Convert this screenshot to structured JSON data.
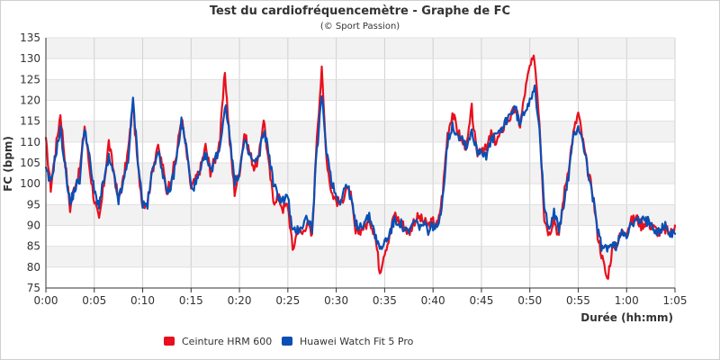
{
  "chart_data": {
    "type": "line",
    "title": "Test du cardiofréquencemètre - Graphe de FC",
    "subtitle": "(© Sport Passion)",
    "xlabel": "Durée (hh:mm)",
    "ylabel": "FC (bpm)",
    "ylim": [
      75,
      135
    ],
    "yticks": [
      75,
      80,
      85,
      90,
      95,
      100,
      105,
      110,
      115,
      120,
      125,
      130,
      135
    ],
    "xlim_minutes": [
      0,
      65
    ],
    "xticks_minutes": [
      0,
      5,
      10,
      15,
      20,
      25,
      30,
      35,
      40,
      45,
      50,
      55,
      60,
      65
    ],
    "xtick_labels": [
      "0:00",
      "0:05",
      "0:10",
      "0:15",
      "0:20",
      "0:25",
      "0:30",
      "0:35",
      "0:40",
      "0:45",
      "0:50",
      "0:55",
      "1:00",
      "1:05"
    ],
    "grid": true,
    "legend_position": "bottom",
    "series": [
      {
        "name": "Ceinture HRM 600",
        "color": "#e8101e",
        "x_minutes": [
          0,
          0.5,
          1,
          1.5,
          2,
          2.5,
          3,
          3.5,
          4,
          4.5,
          5,
          5.5,
          6,
          6.5,
          7,
          7.5,
          8,
          8.5,
          9,
          9.5,
          10,
          10.5,
          11,
          11.5,
          12,
          12.5,
          13,
          13.5,
          14,
          14.5,
          15,
          15.5,
          16,
          16.5,
          17,
          17.5,
          18,
          18.5,
          19,
          19.5,
          20,
          20.5,
          21,
          21.5,
          22,
          22.5,
          23,
          23.5,
          24,
          24.5,
          25,
          25.5,
          26,
          26.5,
          27,
          27.5,
          28,
          28.5,
          29,
          29.5,
          30,
          30.5,
          31,
          31.5,
          32,
          32.5,
          33,
          33.5,
          34,
          34.5,
          35,
          35.5,
          36,
          36.5,
          37,
          37.5,
          38,
          38.5,
          39,
          39.5,
          40,
          40.5,
          41,
          41.5,
          42,
          42.5,
          43,
          43.5,
          44,
          44.5,
          45,
          45.5,
          46,
          46.5,
          47,
          47.5,
          48,
          48.5,
          49,
          49.5,
          50,
          50.5,
          51,
          51.5,
          52,
          52.5,
          53,
          53.5,
          54,
          54.5,
          55,
          55.5,
          56,
          56.5,
          57,
          57.5,
          58,
          58.5,
          59,
          59.5,
          60,
          60.5,
          61,
          61.5,
          62,
          62.5,
          63,
          63.5,
          64,
          64.5,
          65
        ],
        "values": [
          110,
          99,
          108,
          117,
          105,
          94,
          100,
          103,
          114,
          104,
          96,
          91,
          100,
          110,
          103,
          96,
          101,
          108,
          119,
          104,
          95,
          96,
          103,
          109,
          105,
          98,
          102,
          107,
          116,
          108,
          99,
          101,
          104,
          109,
          103,
          106,
          111,
          127,
          110,
          98,
          103,
          112,
          108,
          104,
          106,
          116,
          105,
          96,
          97,
          94,
          95,
          84,
          89,
          88,
          91,
          87,
          112,
          127,
          106,
          98,
          96,
          95,
          99,
          97,
          88,
          89,
          90,
          91,
          88,
          79,
          84,
          87,
          93,
          91,
          90,
          88,
          91,
          92,
          91,
          90,
          91,
          90,
          98,
          112,
          117,
          113,
          110,
          109,
          118,
          107,
          109,
          108,
          112,
          110,
          112,
          115,
          116,
          118,
          114,
          122,
          128,
          130,
          115,
          92,
          88,
          92,
          87,
          97,
          104,
          112,
          117,
          110,
          103,
          98,
          88,
          82,
          77,
          84,
          86,
          88,
          89,
          91,
          92,
          90,
          91,
          90,
          89,
          88,
          89,
          88,
          90
        ]
      },
      {
        "name": "Huawei Watch Fit 5 Pro",
        "color": "#0a4fb4",
        "x_minutes": [
          0,
          0.5,
          1,
          1.5,
          2,
          2.5,
          3,
          3.5,
          4,
          4.5,
          5,
          5.5,
          6,
          6.5,
          7,
          7.5,
          8,
          8.5,
          9,
          9.5,
          10,
          10.5,
          11,
          11.5,
          12,
          12.5,
          13,
          13.5,
          14,
          14.5,
          15,
          15.5,
          16,
          16.5,
          17,
          17.5,
          18,
          18.5,
          19,
          19.5,
          20,
          20.5,
          21,
          21.5,
          22,
          22.5,
          23,
          23.5,
          24,
          24.5,
          25,
          25.5,
          26,
          26.5,
          27,
          27.5,
          28,
          28.5,
          29,
          29.5,
          30,
          30.5,
          31,
          31.5,
          32,
          32.5,
          33,
          33.5,
          34,
          34.5,
          35,
          35.5,
          36,
          36.5,
          37,
          37.5,
          38,
          38.5,
          39,
          39.5,
          40,
          40.5,
          41,
          41.5,
          42,
          42.5,
          43,
          43.5,
          44,
          44.5,
          45,
          45.5,
          46,
          46.5,
          47,
          47.5,
          48,
          48.5,
          49,
          49.5,
          50,
          50.5,
          51,
          51.5,
          52,
          52.5,
          53,
          53.5,
          54,
          54.5,
          55,
          55.5,
          56,
          56.5,
          57,
          57.5,
          58,
          58.5,
          59,
          59.5,
          60,
          60.5,
          61,
          61.5,
          62,
          62.5,
          63,
          63.5,
          64,
          64.5,
          65
        ],
        "values": [
          103,
          100,
          107,
          113,
          104,
          95,
          99,
          101,
          114,
          106,
          98,
          95,
          101,
          106,
          102,
          96,
          100,
          106,
          120,
          106,
          95,
          95,
          103,
          108,
          104,
          97,
          100,
          106,
          115,
          109,
          99,
          100,
          103,
          107,
          103,
          106,
          109,
          119,
          112,
          100,
          103,
          110,
          107,
          105,
          106,
          113,
          108,
          100,
          97,
          96,
          97,
          88,
          89,
          90,
          92,
          89,
          108,
          121,
          108,
          101,
          97,
          96,
          100,
          97,
          90,
          90,
          91,
          92,
          88,
          84,
          86,
          88,
          91,
          91,
          89,
          88,
          91,
          90,
          90,
          89,
          90,
          89,
          97,
          110,
          114,
          112,
          111,
          109,
          113,
          108,
          108,
          107,
          110,
          112,
          112,
          115,
          117,
          118,
          114,
          118,
          120,
          124,
          112,
          94,
          90,
          93,
          89,
          95,
          102,
          111,
          114,
          110,
          103,
          97,
          89,
          84,
          85,
          85,
          85,
          89,
          88,
          90,
          91,
          91,
          91,
          91,
          89,
          89,
          90,
          88,
          88
        ]
      }
    ]
  }
}
